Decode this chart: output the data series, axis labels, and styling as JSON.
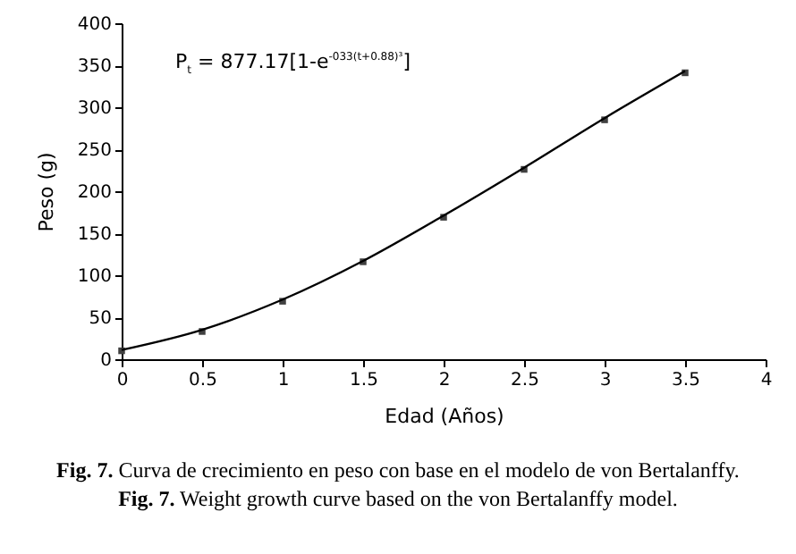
{
  "chart_data": {
    "type": "line",
    "xlabel": "Edad (Años)",
    "ylabel": "Peso (g)",
    "x": [
      0,
      0.5,
      1,
      1.5,
      2,
      2.5,
      3,
      3.5
    ],
    "series": [
      {
        "type": "scatter",
        "color": "#404040",
        "marker": "square",
        "values": [
          10,
          33,
          69,
          116,
          169,
          226,
          285,
          341
        ]
      },
      {
        "color": "#000000",
        "values": [
          11,
          35,
          71,
          117,
          171,
          228,
          287,
          343
        ]
      }
    ],
    "xlim": [
      0,
      4
    ],
    "xticks": [
      0,
      0.5,
      1,
      1.5,
      2,
      2.5,
      3,
      3.5,
      4
    ],
    "ylim": [
      0,
      400
    ],
    "yticks": [
      0,
      50,
      100,
      150,
      200,
      250,
      300,
      350,
      400
    ],
    "grid": false,
    "annotations": [
      "P$_{t}$ = 877.17[1-e$^{-033(t+0.88)³}$]",
      "Fig. 7. Curva de crecimiento en peso con base en el modelo de von Bertalanffy.",
      "Fig. 7. Weight growth curve based on the von Bertalanffy model."
    ]
  }
}
